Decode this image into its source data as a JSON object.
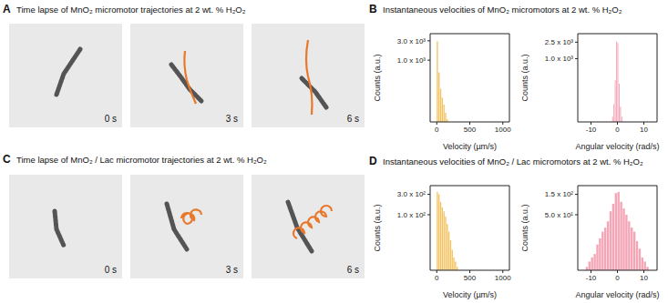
{
  "figure": {
    "A": {
      "letter": "A",
      "title": "Time lapse of MnO₂ micromotor trajectories at 2 wt. % H₂O₂",
      "frames": [
        "0 s",
        "3 s",
        "6 s"
      ]
    },
    "B": {
      "letter": "B",
      "title": "Instantaneous velocities of MnO₂ micromotors at 2 wt. % H₂O₂"
    },
    "C": {
      "letter": "C",
      "title": "Time lapse of MnO₂ / Lac micromotor trajectories at 2 wt. % H₂O₂",
      "frames": [
        "0 s",
        "3 s",
        "6 s"
      ]
    },
    "D": {
      "letter": "D",
      "title": "Instantaneous velocities of MnO₂ / Lac micromotors at 2 wt. % H₂O₂"
    }
  },
  "chart_data": [
    {
      "type": "histogram",
      "bins": [
        0,
        25,
        50,
        75,
        100,
        125,
        150,
        175
      ],
      "values": [
        2900,
        500,
        200,
        120,
        80,
        50,
        35
      ],
      "color": "#f5c15a",
      "x_label": "Velocity (µm/s)",
      "y_label": "Counts (a.u.)",
      "xlim": [
        -100,
        1100
      ],
      "xticks": [
        0,
        500,
        1000
      ],
      "ylim": [
        30,
        4500
      ],
      "yticks": [
        {
          "value": 1000,
          "label": "1.0 x 10³"
        },
        {
          "value": 3000,
          "label": "3.0 x 10³"
        }
      ],
      "log": "y"
    },
    {
      "type": "histogram",
      "bins": [
        -2,
        -1.5,
        -1,
        -0.5,
        0,
        0.5,
        1,
        1.5,
        2
      ],
      "values": [
        40,
        80,
        300,
        2600,
        2400,
        250,
        70,
        40
      ],
      "color": "#f4a6b7",
      "x_label": "Angular velocity (rad/s)",
      "y_label": "Counts (a.u.)",
      "xlim": [
        -15,
        15
      ],
      "xticks": [
        -10,
        0,
        10
      ],
      "ylim": [
        30,
        4000
      ],
      "yticks": [
        {
          "value": 1000,
          "label": "1.0 x 10³"
        },
        {
          "value": 2500,
          "label": "2.5 x 10³"
        }
      ],
      "log": "y"
    },
    {
      "type": "histogram",
      "bins": [
        0,
        25,
        50,
        75,
        100,
        125,
        150,
        175,
        200,
        225,
        250,
        275,
        300,
        325
      ],
      "values": [
        340,
        300,
        200,
        150,
        120,
        90,
        60,
        40,
        25,
        15,
        10,
        8,
        6
      ],
      "color": "#f5c15a",
      "x_label": "Velocity (µm/s)",
      "y_label": "Counts (a.u.)",
      "xlim": [
        -100,
        1100
      ],
      "xticks": [
        0,
        500,
        1000
      ],
      "ylim": [
        5,
        480
      ],
      "yticks": [
        {
          "value": 100,
          "label": "1.0 x 10²"
        },
        {
          "value": 300,
          "label": "3.0 x 10²"
        }
      ],
      "log": "y"
    },
    {
      "type": "histogram",
      "bins": [
        -12,
        -11,
        -10,
        -9,
        -8,
        -7,
        -6,
        -5,
        -4,
        -3,
        -2,
        -1,
        0,
        1,
        2,
        3,
        4,
        5,
        6,
        7,
        8,
        9,
        10,
        11,
        12
      ],
      "values": [
        3,
        4,
        5,
        6,
        10,
        14,
        20,
        25,
        35,
        60,
        90,
        160,
        170,
        100,
        70,
        50,
        35,
        25,
        20,
        12,
        8,
        5,
        4,
        3
      ],
      "color": "#f4a6b7",
      "x_label": "Angular velocity (rad/s)",
      "y_label": "Counts (a.u.)",
      "xlim": [
        -15,
        15
      ],
      "xticks": [
        -10,
        0,
        10
      ],
      "ylim": [
        2.5,
        240
      ],
      "yticks": [
        {
          "value": 50,
          "label": "5.0 x 10¹"
        },
        {
          "value": 150,
          "label": "1.5 x 10²"
        }
      ],
      "log": "y"
    }
  ]
}
